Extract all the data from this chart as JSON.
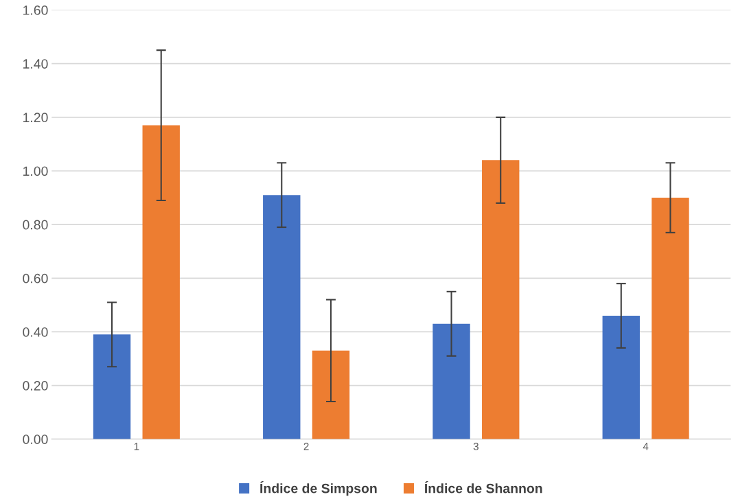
{
  "chart_data": {
    "type": "bar",
    "categories": [
      "1",
      "2",
      "3",
      "4"
    ],
    "series": [
      {
        "name": "Índice de Simpson",
        "color": "#4472c4",
        "values": [
          0.39,
          0.91,
          0.43,
          0.46
        ],
        "errors": [
          0.12,
          0.12,
          0.12,
          0.12
        ]
      },
      {
        "name": "Índice de Shannon",
        "color": "#ed7d31",
        "values": [
          1.17,
          0.33,
          1.04,
          0.9
        ],
        "errors": [
          0.28,
          0.19,
          0.16,
          0.13
        ]
      }
    ],
    "ylim": [
      0,
      1.6
    ],
    "yticks": [
      {
        "value": 0,
        "label": "0.00"
      },
      {
        "value": 0.2,
        "label": "0.20"
      },
      {
        "value": 0.4,
        "label": "0.40"
      },
      {
        "value": 0.6,
        "label": "0.60"
      },
      {
        "value": 0.8,
        "label": "0.80"
      },
      {
        "value": 1.0,
        "label": "1.00"
      },
      {
        "value": 1.2,
        "label": "1.20"
      },
      {
        "value": 1.4,
        "label": "1.40"
      },
      {
        "value": 1.6,
        "label": "1.60"
      }
    ],
    "grid": "y",
    "legend": "bottom"
  }
}
